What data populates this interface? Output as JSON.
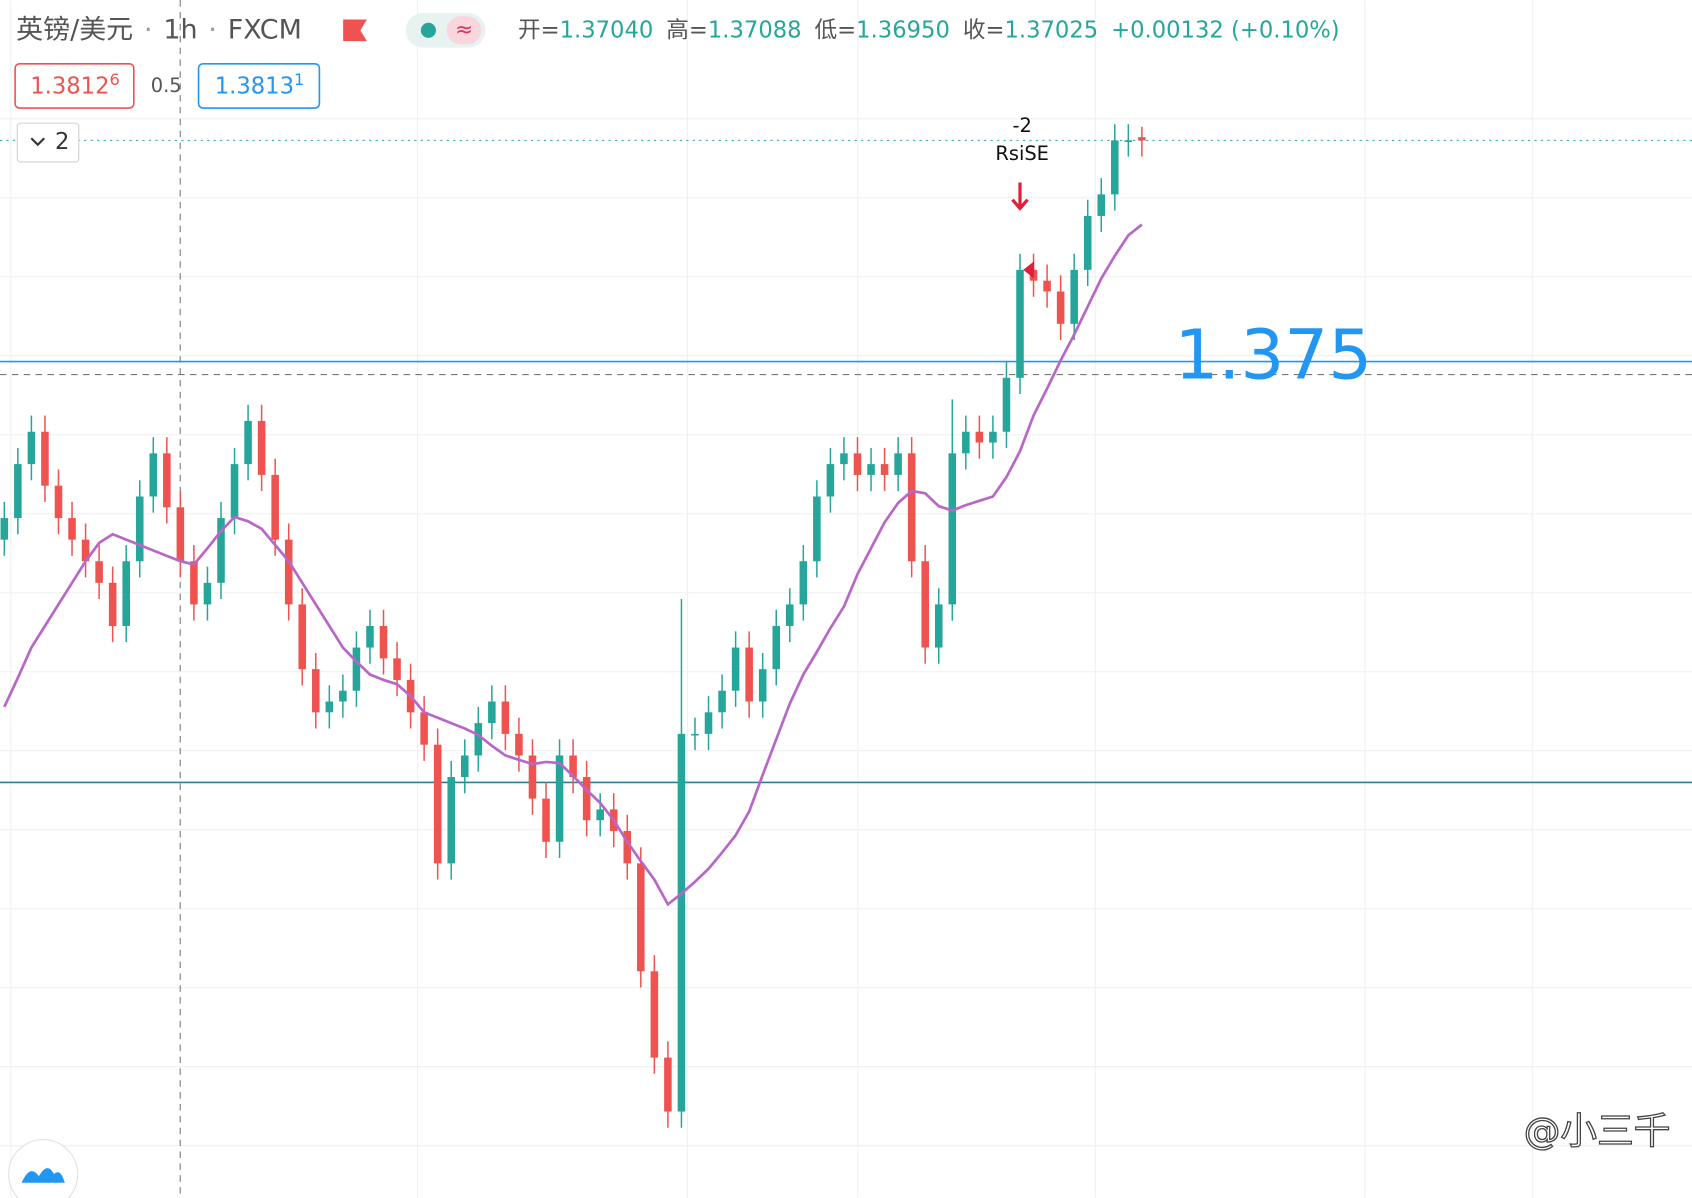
{
  "header": {
    "symbol": "英镑/美元",
    "interval": "1h",
    "source": "FXCM",
    "ohlc": [
      {
        "label": "开=",
        "value": "1.37040"
      },
      {
        "label": "高=",
        "value": "1.37088"
      },
      {
        "label": "低=",
        "value": "1.36950"
      },
      {
        "label": "收=",
        "value": "1.37025"
      }
    ],
    "change": "+0.00132 (+0.10%)",
    "bid": {
      "main": "1.3812",
      "pip": "6"
    },
    "spread": "0.5",
    "ask": {
      "main": "1.3813",
      "pip": "1"
    },
    "indicator_count": "2"
  },
  "chart_data": {
    "type": "candlestick",
    "ylim": [
      1.32125,
      1.37675
    ],
    "up_color": "#26a69a",
    "down_color": "#ef5350",
    "ma_color": "#b867c6",
    "open": [
      1.35175,
      1.35275,
      1.35525,
      1.35675,
      1.35425,
      1.35275,
      1.35175,
      1.35075,
      1.34975,
      1.34775,
      1.35075,
      1.35375,
      1.35575,
      1.35325,
      1.35075,
      1.34875,
      1.34975,
      1.35275,
      1.35525,
      1.35725,
      1.35475,
      1.35175,
      1.34875,
      1.34575,
      1.34375,
      1.34425,
      1.34475,
      1.34675,
      1.34775,
      1.34625,
      1.34525,
      1.34375,
      1.34225,
      1.33675,
      1.34075,
      1.34175,
      1.34325,
      1.34425,
      1.34275,
      1.34175,
      1.33975,
      1.33775,
      1.34175,
      1.34075,
      1.33875,
      1.33925,
      1.33825,
      1.33675,
      1.33175,
      1.32775,
      1.32525,
      1.34275,
      1.34275,
      1.34375,
      1.34475,
      1.34675,
      1.34425,
      1.34575,
      1.34775,
      1.34875,
      1.35075,
      1.35375,
      1.35525,
      1.35575,
      1.35475,
      1.35525,
      1.35475,
      1.35575,
      1.35075,
      1.34675,
      1.34875,
      1.35575,
      1.35675,
      1.35625,
      1.35675,
      1.35925,
      1.36425,
      1.36375,
      1.36325,
      1.36175,
      1.36425,
      1.36675,
      1.36775,
      1.37025,
      1.3704
    ],
    "high": [
      1.3535,
      1.356,
      1.3575,
      1.3575,
      1.355,
      1.3535,
      1.3525,
      1.3515,
      1.3505,
      1.3515,
      1.3545,
      1.3565,
      1.3565,
      1.354,
      1.3515,
      1.3505,
      1.3535,
      1.356,
      1.358,
      1.358,
      1.3555,
      1.3525,
      1.3495,
      1.3465,
      1.345,
      1.3455,
      1.3475,
      1.3485,
      1.3485,
      1.347,
      1.346,
      1.3445,
      1.343,
      1.3415,
      1.3425,
      1.344,
      1.345,
      1.345,
      1.3435,
      1.3425,
      1.3405,
      1.3425,
      1.3425,
      1.3415,
      1.34,
      1.34,
      1.339,
      1.3375,
      1.3325,
      1.3285,
      1.349,
      1.3435,
      1.3445,
      1.3455,
      1.3475,
      1.3475,
      1.3465,
      1.3485,
      1.3495,
      1.3515,
      1.3545,
      1.356,
      1.3565,
      1.3565,
      1.356,
      1.356,
      1.3565,
      1.3565,
      1.3515,
      1.3495,
      1.35825,
      1.3575,
      1.3575,
      1.3575,
      1.36,
      1.365,
      1.365,
      1.3645,
      1.364,
      1.365,
      1.3675,
      1.3685,
      1.371,
      1.371,
      1.37088
    ],
    "low": [
      1.351,
      1.352,
      1.3545,
      1.3535,
      1.352,
      1.351,
      1.35,
      1.349,
      1.347,
      1.347,
      1.35,
      1.353,
      1.3525,
      1.35,
      1.348,
      1.348,
      1.349,
      1.352,
      1.3545,
      1.354,
      1.351,
      1.348,
      1.345,
      1.343,
      1.343,
      1.3435,
      1.344,
      1.346,
      1.3455,
      1.3445,
      1.343,
      1.3415,
      1.336,
      1.336,
      1.34,
      1.341,
      1.3425,
      1.342,
      1.341,
      1.339,
      1.337,
      1.337,
      1.34,
      1.338,
      1.338,
      1.3375,
      1.336,
      1.331,
      1.327,
      1.3245,
      1.3245,
      1.342,
      1.342,
      1.343,
      1.344,
      1.3435,
      1.3435,
      1.345,
      1.347,
      1.348,
      1.35,
      1.353,
      1.3545,
      1.354,
      1.354,
      1.354,
      1.354,
      1.35,
      1.346,
      1.346,
      1.348,
      1.355,
      1.3555,
      1.3555,
      1.356,
      1.3585,
      1.363,
      1.3625,
      1.361,
      1.361,
      1.3635,
      1.366,
      1.367,
      1.3695,
      1.3695
    ],
    "close": [
      1.35275,
      1.35525,
      1.35675,
      1.35425,
      1.35275,
      1.35175,
      1.35075,
      1.34975,
      1.34775,
      1.35075,
      1.35375,
      1.35575,
      1.35325,
      1.35075,
      1.34875,
      1.34975,
      1.35275,
      1.35525,
      1.35725,
      1.35475,
      1.35175,
      1.34875,
      1.34575,
      1.34375,
      1.34425,
      1.34475,
      1.34675,
      1.34775,
      1.34625,
      1.34525,
      1.34375,
      1.34225,
      1.33675,
      1.34075,
      1.34175,
      1.34325,
      1.34425,
      1.34275,
      1.34175,
      1.33975,
      1.33775,
      1.34175,
      1.34075,
      1.33875,
      1.33925,
      1.33825,
      1.33675,
      1.33175,
      1.32775,
      1.32525,
      1.34275,
      1.34275,
      1.34375,
      1.34475,
      1.34675,
      1.34425,
      1.34575,
      1.34775,
      1.34875,
      1.35075,
      1.35375,
      1.35525,
      1.35575,
      1.35475,
      1.35525,
      1.35475,
      1.35575,
      1.35075,
      1.34675,
      1.34875,
      1.35575,
      1.35675,
      1.35625,
      1.35675,
      1.35925,
      1.36425,
      1.36375,
      1.36325,
      1.36175,
      1.36425,
      1.36675,
      1.36775,
      1.37025,
      1.37025,
      1.37025
    ],
    "ma": [
      1.344,
      1.34535,
      1.34675,
      1.34775,
      1.34875,
      1.34975,
      1.35075,
      1.3516,
      1.352,
      1.35175,
      1.3515,
      1.35125,
      1.351,
      1.35075,
      1.3506,
      1.35135,
      1.35215,
      1.3528,
      1.3526,
      1.35225,
      1.3515,
      1.35075,
      1.34975,
      1.34875,
      1.34775,
      1.34675,
      1.3461,
      1.3455,
      1.34525,
      1.34505,
      1.3445,
      1.34375,
      1.3435,
      1.34325,
      1.343,
      1.3427,
      1.3422,
      1.34175,
      1.34155,
      1.34135,
      1.34145,
      1.3414,
      1.3408,
      1.34015,
      1.33955,
      1.33875,
      1.33775,
      1.33685,
      1.336,
      1.33485,
      1.33535,
      1.3359,
      1.3365,
      1.33725,
      1.33805,
      1.33915,
      1.34085,
      1.3425,
      1.34415,
      1.3455,
      1.34655,
      1.34765,
      1.34865,
      1.35015,
      1.35135,
      1.35255,
      1.35345,
      1.354,
      1.3539,
      1.3533,
      1.3531,
      1.35335,
      1.35355,
      1.35375,
      1.35465,
      1.35585,
      1.3575,
      1.35875,
      1.36005,
      1.36125,
      1.36255,
      1.36385,
      1.3649,
      1.36585,
      1.36635
    ],
    "hlines": [
      1.36,
      1.3405
    ],
    "signal_index": 75,
    "signal_value": "-2",
    "signal_name": "RsiSE",
    "level_label": "1.375"
  },
  "watermark": "@小三千"
}
